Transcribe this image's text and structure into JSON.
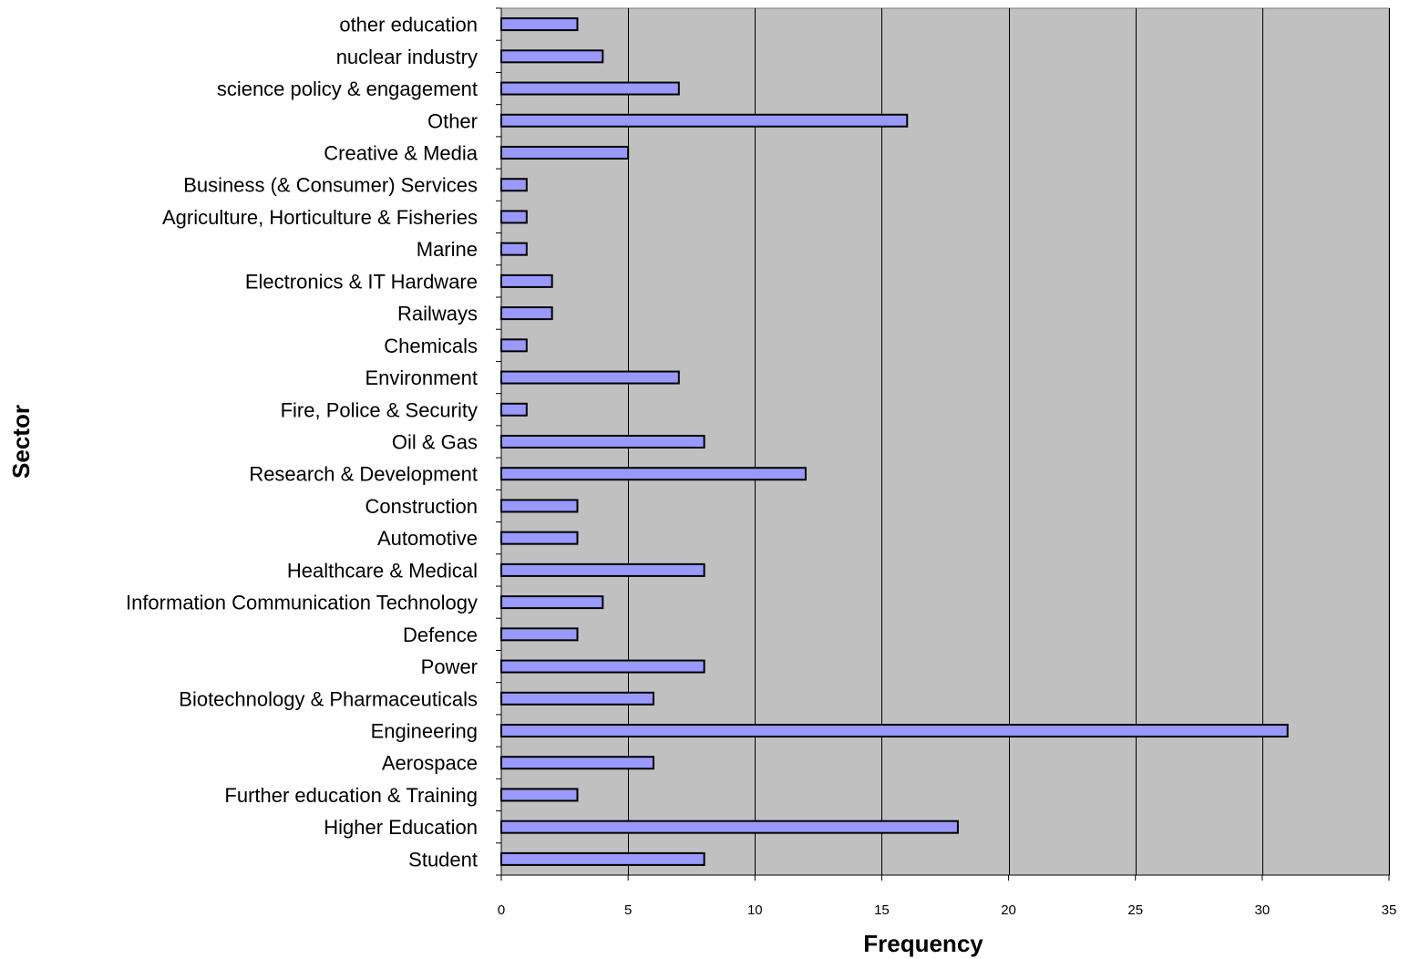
{
  "chart_data": {
    "type": "bar",
    "orientation": "horizontal",
    "xlabel": "Frequency",
    "ylabel": "Sector",
    "xlim": [
      0,
      35
    ],
    "xticks": [
      0,
      5,
      10,
      15,
      20,
      25,
      30,
      35
    ],
    "grid": "vertical",
    "colors": {
      "plot_bg": "#c0c0c0",
      "bar_fill": "#9999ff",
      "bar_stroke": "#000000",
      "grid": "#000000"
    },
    "categories": [
      "other education",
      "nuclear industry",
      "science policy & engagement",
      "Other",
      "Creative & Media",
      "Business (& Consumer) Services",
      "Agriculture, Horticulture & Fisheries",
      "Marine",
      "Electronics & IT Hardware",
      "Railways",
      "Chemicals",
      "Environment",
      "Fire, Police & Security",
      "Oil & Gas",
      "Research & Development",
      "Construction",
      "Automotive",
      "Healthcare & Medical",
      "Information Communication Technology",
      "Defence",
      "Power",
      "Biotechnology & Pharmaceuticals",
      "Engineering",
      "Aerospace",
      "Further education & Training",
      "Higher Education",
      "Student"
    ],
    "values": [
      3,
      4,
      7,
      16,
      5,
      1,
      1,
      1,
      2,
      2,
      1,
      7,
      1,
      8,
      12,
      3,
      3,
      8,
      4,
      3,
      8,
      6,
      31,
      6,
      3,
      18,
      8
    ]
  }
}
